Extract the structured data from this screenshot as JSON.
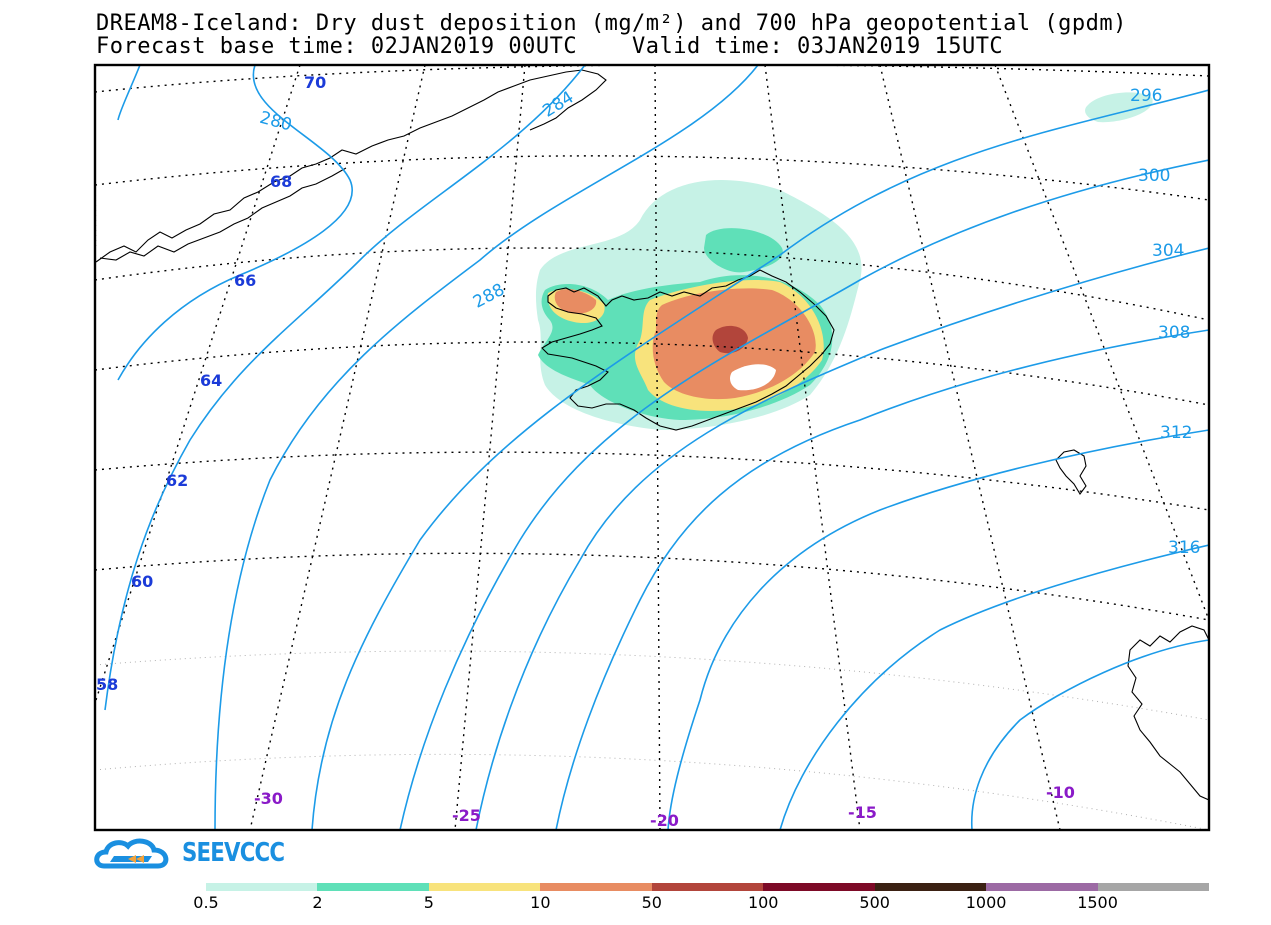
{
  "title": {
    "line1": "DREAM8-Iceland: Dry dust deposition (mg/m²) and 700 hPa geopotential (gpdm)",
    "line2": "Forecast base time: 02JAN2019 00UTC    Valid time: 03JAN2019 15UTC"
  },
  "logo": {
    "text": "SEEVCCC",
    "icon": "cloud-logo-icon"
  },
  "lat_labels": [
    "70",
    "68",
    "66",
    "64",
    "62",
    "60",
    "58"
  ],
  "lon_labels": [
    "-30",
    "-25",
    "-20",
    "-15",
    "-10"
  ],
  "contour_labels": [
    "280",
    "284",
    "288",
    "296",
    "300",
    "304",
    "308",
    "312",
    "316"
  ],
  "colorbar": {
    "colors": [
      "#c6f2e6",
      "#5fe0b8",
      "#f8e37c",
      "#e88c62",
      "#b2453b",
      "#7d0a27",
      "#3b2113",
      "#9c6aa4",
      "#a6a6a6"
    ],
    "labels": [
      "0.5",
      "2",
      "5",
      "10",
      "50",
      "100",
      "500",
      "1000",
      "1500"
    ]
  },
  "colors": {
    "contour": "#1c9be8",
    "lat_label": "#1b3bd8",
    "lon_label": "#8a1ac8",
    "logo": "#1a8fe0"
  }
}
